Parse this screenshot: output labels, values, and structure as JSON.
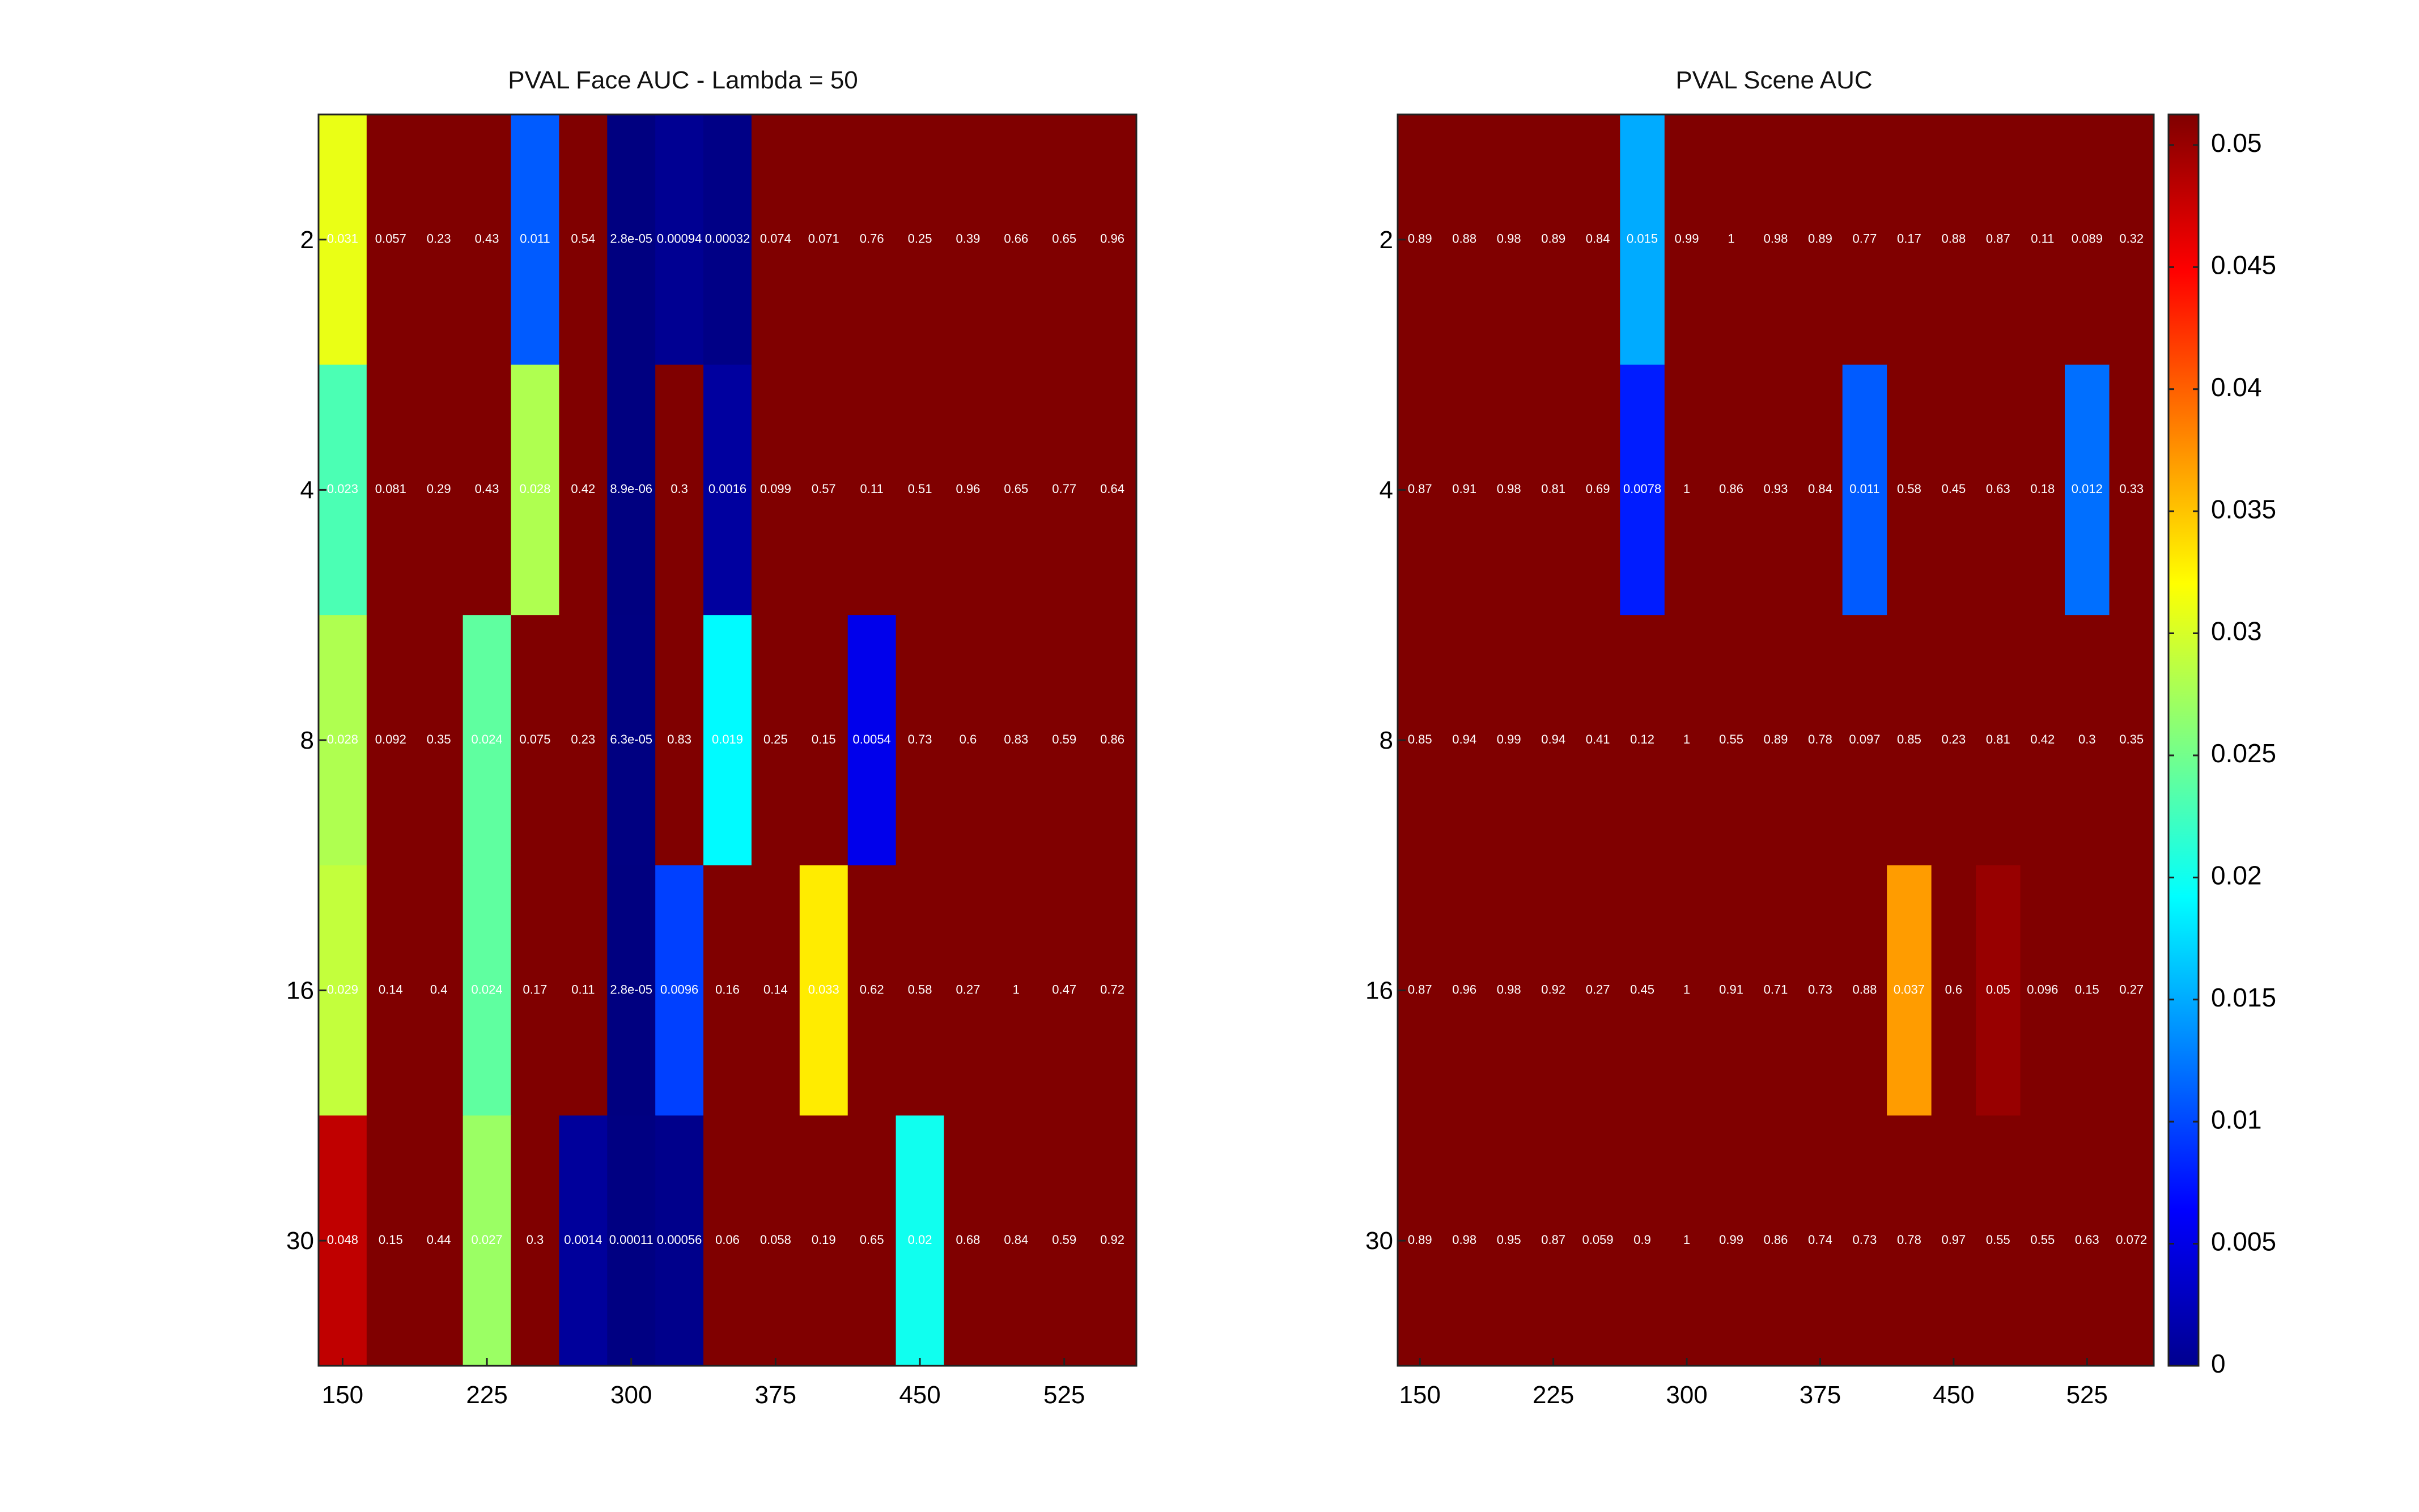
{
  "colorbar": {
    "min": 0,
    "max": 0.05125,
    "ticks": [
      "0",
      "0.005",
      "0.01",
      "0.015",
      "0.02",
      "0.025",
      "0.03",
      "0.035",
      "0.04",
      "0.045",
      "0.05"
    ]
  },
  "chart_data": [
    {
      "type": "heatmap",
      "title": "PVAL Face AUC - Lambda = 50",
      "colormap": "jet",
      "x_tick_labels": [
        "150",
        "225",
        "300",
        "375",
        "450",
        "525"
      ],
      "y_tick_labels": [
        "2",
        "4",
        "8",
        "16",
        "30"
      ],
      "rows": [
        {
          "y": "2",
          "values": [
            0.031,
            0.057,
            0.23,
            0.43,
            0.011,
            0.54,
            2.8e-05,
            0.00094,
            0.00032,
            0.074,
            0.071,
            0.76,
            0.25,
            0.39,
            0.66,
            0.65,
            0.96
          ],
          "labels": [
            "0.031",
            "0.057",
            "0.23",
            "0.43",
            "0.011",
            "0.54",
            "2.8e-05",
            "0.00094",
            "0.00032",
            "0.074",
            "0.071",
            "0.76",
            "0.25",
            "0.39",
            "0.66",
            "0.65",
            "0.96"
          ]
        },
        {
          "y": "4",
          "values": [
            0.023,
            0.081,
            0.29,
            0.43,
            0.028,
            0.42,
            8.9e-06,
            0.3,
            0.0016,
            0.099,
            0.57,
            0.11,
            0.51,
            0.96,
            0.65,
            0.77,
            0.64
          ],
          "labels": [
            "0.023",
            "0.081",
            "0.29",
            "0.43",
            "0.028",
            "0.42",
            "8.9e-06",
            "0.3",
            "0.0016",
            "0.099",
            "0.57",
            "0.11",
            "0.51",
            "0.96",
            "0.65",
            "0.77",
            "0.64"
          ]
        },
        {
          "y": "8",
          "values": [
            0.028,
            0.092,
            0.35,
            0.024,
            0.075,
            0.23,
            6.3e-05,
            0.83,
            0.019,
            0.25,
            0.15,
            0.0054,
            0.73,
            0.6,
            0.83,
            0.59,
            0.86
          ],
          "labels": [
            "0.028",
            "0.092",
            "0.35",
            "0.024",
            "0.075",
            "0.23",
            "6.3e-05",
            "0.83",
            "0.019",
            "0.25",
            "0.15",
            "0.0054",
            "0.73",
            "0.6",
            "0.83",
            "0.59",
            "0.86"
          ]
        },
        {
          "y": "16",
          "values": [
            0.029,
            0.14,
            0.4,
            0.024,
            0.17,
            0.11,
            2.8e-05,
            0.0096,
            0.16,
            0.14,
            0.033,
            0.62,
            0.58,
            0.27,
            1,
            0.47,
            0.72
          ],
          "labels": [
            "0.029",
            "0.14",
            "0.4",
            "0.024",
            "0.17",
            "0.11",
            "2.8e-05",
            "0.0096",
            "0.16",
            "0.14",
            "0.033",
            "0.62",
            "0.58",
            "0.27",
            "1",
            "0.47",
            "0.72"
          ]
        },
        {
          "y": "30",
          "values": [
            0.048,
            0.15,
            0.44,
            0.027,
            0.3,
            0.0014,
            0.00011,
            0.00056,
            0.06,
            0.058,
            0.19,
            0.65,
            0.02,
            0.68,
            0.84,
            0.59,
            0.92
          ],
          "labels": [
            "0.048",
            "0.15",
            "0.44",
            "0.027",
            "0.3",
            "0.0014",
            "0.00011",
            "0.00056",
            "0.06",
            "0.058",
            "0.19",
            "0.65",
            "0.02",
            "0.68",
            "0.84",
            "0.59",
            "0.92"
          ]
        }
      ]
    },
    {
      "type": "heatmap",
      "title": "PVAL Scene AUC",
      "colormap": "jet",
      "x_tick_labels": [
        "150",
        "225",
        "300",
        "375",
        "450",
        "525"
      ],
      "y_tick_labels": [
        "2",
        "4",
        "8",
        "16",
        "30"
      ],
      "rows": [
        {
          "y": "2",
          "values": [
            0.89,
            0.88,
            0.98,
            0.89,
            0.84,
            0.015,
            0.99,
            1,
            0.98,
            0.89,
            0.77,
            0.17,
            0.88,
            0.87,
            0.11,
            0.089,
            0.32
          ],
          "labels": [
            "0.89",
            "0.88",
            "0.98",
            "0.89",
            "0.84",
            "0.015",
            "0.99",
            "1",
            "0.98",
            "0.89",
            "0.77",
            "0.17",
            "0.88",
            "0.87",
            "0.11",
            "0.089",
            "0.32"
          ]
        },
        {
          "y": "4",
          "values": [
            0.87,
            0.91,
            0.98,
            0.81,
            0.69,
            0.0078,
            1,
            0.86,
            0.93,
            0.84,
            0.011,
            0.58,
            0.45,
            0.63,
            0.18,
            0.012,
            0.33
          ],
          "labels": [
            "0.87",
            "0.91",
            "0.98",
            "0.81",
            "0.69",
            "0.0078",
            "1",
            "0.86",
            "0.93",
            "0.84",
            "0.011",
            "0.58",
            "0.45",
            "0.63",
            "0.18",
            "0.012",
            "0.33"
          ]
        },
        {
          "y": "8",
          "values": [
            0.85,
            0.94,
            0.99,
            0.94,
            0.41,
            0.12,
            1,
            0.55,
            0.89,
            0.78,
            0.097,
            0.85,
            0.23,
            0.81,
            0.42,
            0.3,
            0.35
          ],
          "labels": [
            "0.85",
            "0.94",
            "0.99",
            "0.94",
            "0.41",
            "0.12",
            "1",
            "0.55",
            "0.89",
            "0.78",
            "0.097",
            "0.85",
            "0.23",
            "0.81",
            "0.42",
            "0.3",
            "0.35"
          ]
        },
        {
          "y": "16",
          "values": [
            0.87,
            0.96,
            0.98,
            0.92,
            0.27,
            0.45,
            1,
            0.91,
            0.71,
            0.73,
            0.88,
            0.037,
            0.6,
            0.05,
            0.096,
            0.15,
            0.27
          ],
          "labels": [
            "0.87",
            "0.96",
            "0.98",
            "0.92",
            "0.27",
            "0.45",
            "1",
            "0.91",
            "0.71",
            "0.73",
            "0.88",
            "0.037",
            "0.6",
            "0.05",
            "0.096",
            "0.15",
            "0.27"
          ]
        },
        {
          "y": "30",
          "values": [
            0.89,
            0.98,
            0.95,
            0.87,
            0.059,
            0.9,
            1,
            0.99,
            0.86,
            0.74,
            0.73,
            0.78,
            0.97,
            0.55,
            0.55,
            0.63,
            0.072
          ],
          "labels": [
            "0.89",
            "0.98",
            "0.95",
            "0.87",
            "0.059",
            "0.9",
            "1",
            "0.99",
            "0.86",
            "0.74",
            "0.73",
            "0.78",
            "0.97",
            "0.55",
            "0.55",
            "0.63",
            "0.072"
          ]
        }
      ]
    }
  ]
}
